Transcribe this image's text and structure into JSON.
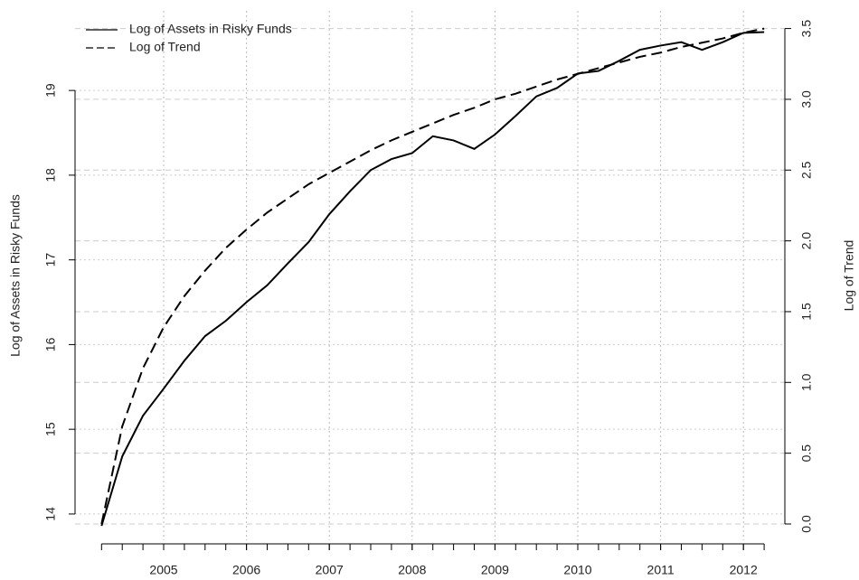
{
  "chart_data": {
    "type": "line",
    "x": [
      2004.25,
      2004.5,
      2004.75,
      2005,
      2005.25,
      2005.5,
      2005.75,
      2006,
      2006.25,
      2006.5,
      2006.75,
      2007,
      2007.25,
      2007.5,
      2007.75,
      2008,
      2008.25,
      2008.5,
      2008.75,
      2009,
      2009.25,
      2009.5,
      2009.75,
      2010,
      2010.25,
      2010.5,
      2010.75,
      2011,
      2011.25,
      2011.5,
      2011.75,
      2012,
      2012.25
    ],
    "series": [
      {
        "name": "Log of Assets in Risky Funds",
        "color": "#000000",
        "dash": "solid",
        "values": [
          13.86,
          14.68,
          15.16,
          15.48,
          15.81,
          16.1,
          16.28,
          16.5,
          16.7,
          16.96,
          17.21,
          17.54,
          17.81,
          18.06,
          18.19,
          18.26,
          18.46,
          18.41,
          18.31,
          18.48,
          18.7,
          18.93,
          19.03,
          19.2,
          19.23,
          19.35,
          19.48,
          19.53,
          19.57,
          19.48,
          19.57,
          19.68,
          19.69
        ]
      },
      {
        "name": "Log of Trend",
        "color": "#000000",
        "dash": "dashed",
        "axis": "y2",
        "values": [
          0,
          0.69,
          1.1,
          1.39,
          1.61,
          1.79,
          1.95,
          2.08,
          2.2,
          2.3,
          2.4,
          2.48,
          2.56,
          2.64,
          2.71,
          2.77,
          2.83,
          2.89,
          2.94,
          3.0,
          3.04,
          3.09,
          3.14,
          3.18,
          3.22,
          3.26,
          3.3,
          3.33,
          3.37,
          3.4,
          3.43,
          3.47,
          3.5
        ]
      }
    ],
    "y_label": "Log of Assets in Risky Funds",
    "y2_label": "Log of Trend",
    "xlim": [
      2003.93,
      2012.5
    ],
    "xticks": [
      2005,
      2006,
      2007,
      2008,
      2009,
      2010,
      2011,
      2012
    ],
    "ylim": [
      13.69,
      19.94
    ],
    "yticks": [
      14,
      15,
      16,
      17,
      18,
      19
    ],
    "y2lim": [
      -0.115,
      3.625
    ],
    "y2ticks": [
      {
        "value": 0,
        "label": "0.0"
      },
      0.5,
      {
        "value": 1,
        "label": "1.0"
      },
      1.5,
      {
        "value": 2,
        "label": "2.0"
      },
      2.5,
      {
        "value": 3,
        "label": "3.0"
      },
      3.5
    ],
    "grid": true,
    "legend": "top-left"
  }
}
